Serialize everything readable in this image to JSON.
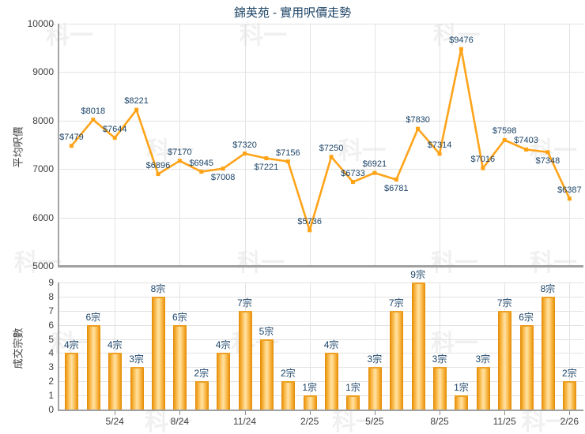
{
  "title": "錦英苑 - 實用呎價走勢",
  "watermark_text": "科一",
  "colors": {
    "line": "#ffa41a",
    "marker": "#ffa214",
    "bar_edge": "#e18a04",
    "bar_center": "#ffe2a6",
    "data_label": "#1c4468",
    "title": "#1d4466",
    "axis_text": "#404040",
    "grid": "#e3e3e3",
    "axis_line": "#a6a6a6"
  },
  "x_axis": {
    "tick_labels": [
      "5/24",
      "8/24",
      "11/24",
      "2/25",
      "5/25",
      "8/25",
      "11/25",
      "2/26"
    ],
    "tick_indices": [
      2,
      5,
      8,
      11,
      14,
      17,
      20,
      23
    ]
  },
  "chart_data": [
    {
      "type": "line",
      "title": "錦英苑 - 實用呎價走勢",
      "ylabel": "平均呎價",
      "ylim": [
        5000,
        10000
      ],
      "yticks": [
        5000,
        6000,
        7000,
        8000,
        9000,
        10000
      ],
      "grid": true,
      "legend": "none",
      "values": [
        7479,
        8018,
        7644,
        8221,
        6896,
        7170,
        6945,
        7008,
        7320,
        7221,
        7156,
        5736,
        7250,
        6733,
        6921,
        6781,
        7830,
        7314,
        9476,
        7016,
        7598,
        7403,
        7348,
        6387
      ],
      "point_labels": [
        "$7479",
        "$8018",
        "$7644",
        "$8221",
        "$6896",
        "$7170",
        "$6945",
        "$7008",
        "$7320",
        "$7221",
        "$7156",
        "$5736",
        "$7250",
        "$6733",
        "$6921",
        "$6781",
        "$7830",
        "$7314",
        "$9476",
        "$7016",
        "$7598",
        "$7403",
        "$7348",
        "$6387"
      ],
      "labels_positioned_below": [
        7,
        9,
        15,
        22
      ]
    },
    {
      "type": "bar",
      "ylabel": "成交宗數",
      "ylim": [
        0,
        9
      ],
      "yticks": [
        0,
        1,
        2,
        3,
        4,
        5,
        6,
        7,
        8,
        9
      ],
      "grid": true,
      "legend": "none",
      "values": [
        4,
        6,
        4,
        3,
        8,
        6,
        2,
        4,
        7,
        5,
        2,
        1,
        4,
        1,
        3,
        7,
        9,
        3,
        1,
        3,
        7,
        6,
        8,
        2
      ],
      "bar_labels": [
        "4宗",
        "6宗",
        "4宗",
        "3宗",
        "8宗",
        "6宗",
        "2宗",
        "4宗",
        "7宗",
        "5宗",
        "2宗",
        "1宗",
        "4宗",
        "1宗",
        "3宗",
        "7宗",
        "9宗",
        "3宗",
        "1宗",
        "3宗",
        "7宗",
        "6宗",
        "8宗",
        "2宗"
      ]
    }
  ]
}
